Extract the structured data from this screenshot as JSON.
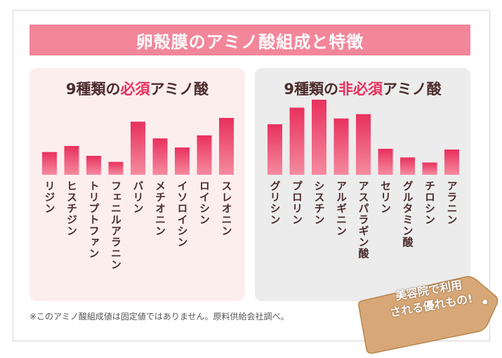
{
  "title": "卵殻膜のアミノ酸組成と特徴",
  "footnote": "※このアミノ酸組成値は固定値ではありません。原料供給会社調べ。",
  "badge": {
    "line1": "美容院で利用",
    "line2": "される優れもの!"
  },
  "colors": {
    "bar_top": "#e8305d",
    "bar_bottom": "#f58ba0",
    "title_bar": "#f3869a",
    "accent": "#e8305d"
  },
  "chart_data": [
    {
      "type": "bar",
      "title_prefix": "9種類の",
      "title_highlight": "必須",
      "title_suffix": "アミノ酸",
      "categories": [
        "リジン",
        "ヒスチジン",
        "トリプトファン",
        "フェニルアラニン",
        "バリン",
        "メチオニン",
        "イソロイシン",
        "ロイシン",
        "スレオニン"
      ],
      "values": [
        3.0,
        3.8,
        2.5,
        1.7,
        7.0,
        4.8,
        3.6,
        5.2,
        7.5
      ],
      "ylim": [
        0,
        10
      ]
    },
    {
      "type": "bar",
      "title_prefix": "9種類の",
      "title_highlight": "非必須",
      "title_suffix": "アミノ酸",
      "categories": [
        "グリシン",
        "プロリン",
        "シスチン",
        "アルギニン",
        "アスパラギン酸",
        "セリン",
        "グルタミン酸",
        "チロシン",
        "アラニン"
      ],
      "values": [
        7.0,
        9.3,
        10.4,
        7.8,
        8.4,
        3.6,
        2.4,
        1.7,
        3.5
      ],
      "ylim": [
        0,
        10.5
      ]
    }
  ]
}
